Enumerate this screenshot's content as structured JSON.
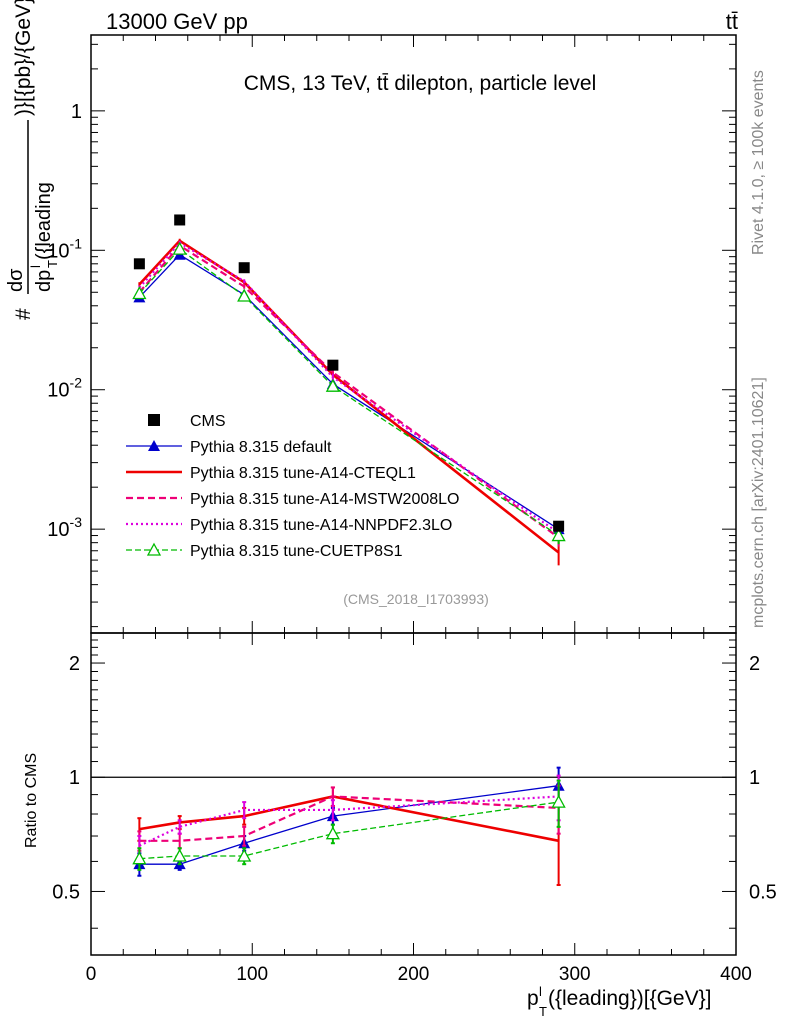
{
  "header": {
    "energy_label": "13000 GeV pp",
    "process_label": "tt̄"
  },
  "side_labels": {
    "rivet": "Rivet 4.1.0, ≥ 100k events",
    "mcplots": "mcplots.cern.ch [arXiv:2401.10621]"
  },
  "chart_data": [
    {
      "type": "line",
      "panel": "main",
      "title": "CMS, 13 TeV, tt̄ dilepton, particle level",
      "analysis_id": "(CMS_2018_I1703993)",
      "xlabel": "p_T^l({leading})[{GeV}]",
      "ylabel": "# dσ/dp_T^l({leading})[{pb}/{GeV}]",
      "xlim": [
        0,
        400
      ],
      "ylim": [
        0.00018,
        3.5
      ],
      "yscale": "log",
      "x_ticks": [
        "0",
        "100",
        "200",
        "300",
        "400"
      ],
      "y_ticks": [
        "10^-3",
        "10^-2",
        "10^-1",
        "1"
      ],
      "x": [
        30,
        55,
        95,
        150,
        290
      ],
      "series": [
        {
          "name": "CMS",
          "style": "data",
          "color": "#000000",
          "values": [
            0.08,
            0.165,
            0.075,
            0.015,
            0.00105
          ]
        },
        {
          "name": "Pythia 8.315 default",
          "style": "solid-triangle",
          "color": "#0000cc",
          "values": [
            0.046,
            0.093,
            0.048,
            0.011,
            0.001
          ],
          "errors": [
            0.002,
            0.004,
            0.002,
            0.0006,
            0.00012
          ]
        },
        {
          "name": "Pythia 8.315 tune-A14-CTEQL1",
          "style": "thick-solid",
          "color": "#ee0000",
          "values": [
            0.057,
            0.117,
            0.059,
            0.0128,
            0.00068
          ],
          "errors": [
            0.002,
            0.004,
            0.002,
            0.0007,
            0.00013
          ]
        },
        {
          "name": "Pythia 8.315 tune-A14-MSTW2008LO",
          "style": "dashed",
          "color": "#ee0077",
          "values": [
            0.05,
            0.108,
            0.055,
            0.0133,
            0.00087
          ],
          "errors": [
            0.002,
            0.004,
            0.002,
            0.0007,
            0.00012
          ]
        },
        {
          "name": "Pythia 8.315 tune-A14-NNPDF2.3LO",
          "style": "dotted",
          "color": "#dd00dd",
          "values": [
            0.054,
            0.113,
            0.06,
            0.0123,
            0.00094
          ],
          "errors": [
            0.002,
            0.004,
            0.002,
            0.0007,
            0.00012
          ]
        },
        {
          "name": "Pythia 8.315 tune-CUETP8S1",
          "style": "dashed-open-triangle",
          "color": "#00bb00",
          "values": [
            0.049,
            0.102,
            0.047,
            0.0106,
            0.0009
          ],
          "errors": [
            0.002,
            0.004,
            0.002,
            0.0006,
            0.00012
          ]
        }
      ]
    },
    {
      "type": "line",
      "panel": "ratio",
      "ylabel": "Ratio to CMS",
      "xlim": [
        0,
        400
      ],
      "ylim": [
        0.34,
        2.4
      ],
      "yscale": "log",
      "y_ticks": [
        "0.5",
        "1",
        "2"
      ],
      "x": [
        30,
        55,
        95,
        150,
        290
      ],
      "series": [
        {
          "name": "Pythia 8.315 default",
          "color": "#0000cc",
          "values": [
            0.59,
            0.59,
            0.67,
            0.79,
            0.95
          ],
          "errors": [
            0.04,
            0.02,
            0.03,
            0.04,
            0.11
          ]
        },
        {
          "name": "Pythia 8.315 tune-A14-CTEQL1",
          "color": "#ee0000",
          "values": [
            0.73,
            0.76,
            0.79,
            0.89,
            0.68
          ],
          "errors": [
            0.05,
            0.03,
            0.04,
            0.05,
            0.16
          ]
        },
        {
          "name": "Pythia 8.315 tune-A14-MSTW2008LO",
          "color": "#ee0077",
          "values": [
            0.68,
            0.68,
            0.7,
            0.89,
            0.83
          ],
          "errors": [
            0.04,
            0.03,
            0.04,
            0.05,
            0.12
          ]
        },
        {
          "name": "Pythia 8.315 tune-A14-NNPDF2.3LO",
          "color": "#dd00dd",
          "values": [
            0.66,
            0.74,
            0.82,
            0.82,
            0.89
          ],
          "errors": [
            0.04,
            0.03,
            0.04,
            0.05,
            0.12
          ]
        },
        {
          "name": "Pythia 8.315 tune-CUETP8S1",
          "color": "#00bb00",
          "values": [
            0.61,
            0.62,
            0.62,
            0.71,
            0.86
          ],
          "errors": [
            0.04,
            0.03,
            0.03,
            0.04,
            0.12
          ]
        }
      ]
    }
  ]
}
